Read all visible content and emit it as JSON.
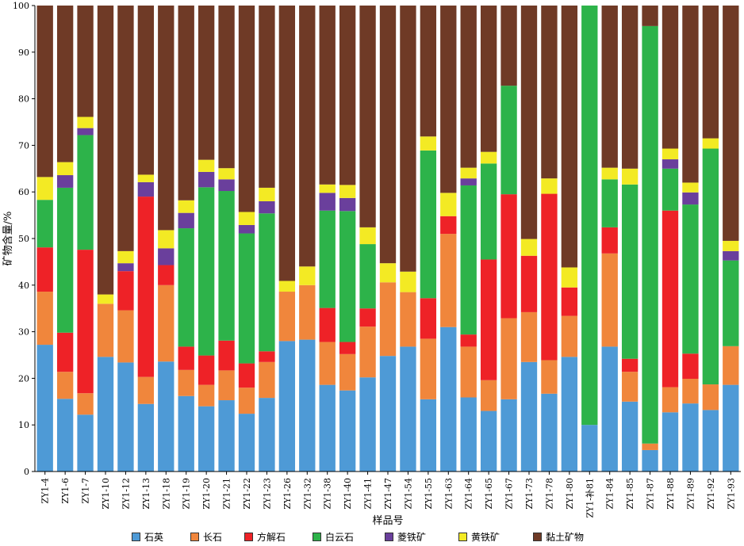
{
  "chart_data": {
    "type": "bar",
    "stacked": true,
    "title": "",
    "xlabel": "样品号",
    "ylabel": "矿物含量/%",
    "ylim": [
      0,
      100
    ],
    "yticks": [
      0,
      10,
      20,
      30,
      40,
      50,
      60,
      70,
      80,
      90,
      100
    ],
    "legend_position": "bottom",
    "categories": [
      "ZY1-4",
      "ZY1-6",
      "ZY1-7",
      "ZY1-10",
      "ZY1-12",
      "ZY1-13",
      "ZY1-18",
      "ZY1-19",
      "ZY1-20",
      "ZY1-21",
      "ZY1-22",
      "ZY1-23",
      "ZY1-26",
      "ZY1-32",
      "ZY1-38",
      "ZY1-40",
      "ZY1-41",
      "ZY1-47",
      "ZY1-54",
      "ZY1-55",
      "ZY1-63",
      "ZY1-64",
      "ZY1-65",
      "ZY1-67",
      "ZY1-73",
      "ZY1-78",
      "ZY1-80",
      "ZY1-补81",
      "ZY1-84",
      "ZY1-85",
      "ZY1-87",
      "ZY1-88",
      "ZY1-89",
      "ZY1-92",
      "ZY1-93"
    ],
    "series": [
      {
        "name": "石英",
        "color": "#4e9ad6",
        "values": [
          27.2,
          15.6,
          12.2,
          24.6,
          23.4,
          14.5,
          23.6,
          16.2,
          14.0,
          15.3,
          12.4,
          15.8,
          28.0,
          28.3,
          18.6,
          17.4,
          20.2,
          24.8,
          26.8,
          15.5,
          31.0,
          15.9,
          13.0,
          15.5,
          23.5,
          16.7,
          24.6,
          10.0,
          26.8,
          15.0,
          4.6,
          12.7,
          14.6,
          13.2,
          18.6
        ]
      },
      {
        "name": "长石",
        "color": "#f0863c",
        "values": [
          11.4,
          5.8,
          4.6,
          11.4,
          11.2,
          5.8,
          16.4,
          5.6,
          4.6,
          6.4,
          5.6,
          7.7,
          10.6,
          11.7,
          9.2,
          7.8,
          10.9,
          15.8,
          11.7,
          13.0,
          20.0,
          10.9,
          6.6,
          17.4,
          10.7,
          7.2,
          8.8,
          0.0,
          20.0,
          6.4,
          1.4,
          5.4,
          5.3,
          5.5,
          8.3
        ]
      },
      {
        "name": "方解石",
        "color": "#ee2227",
        "values": [
          9.5,
          8.4,
          30.8,
          0,
          8.4,
          38.7,
          4.3,
          5.0,
          6.3,
          6.4,
          5.2,
          2.3,
          0,
          0,
          7.3,
          2.6,
          3.9,
          0,
          0,
          8.7,
          3.8,
          2.6,
          25.9,
          26.6,
          12.1,
          35.7,
          6.1,
          0,
          5.6,
          2.8,
          0,
          37.9,
          5.4,
          0,
          0
        ]
      },
      {
        "name": "白云石",
        "color": "#2db34a",
        "values": [
          10.2,
          31.1,
          24.6,
          0,
          0,
          0,
          0,
          25.4,
          36.1,
          32.1,
          27.9,
          29.6,
          0,
          0,
          20.9,
          28.1,
          13.8,
          0,
          0,
          31.7,
          0,
          32.0,
          20.6,
          23.3,
          0,
          0,
          0,
          90.0,
          10.3,
          37.4,
          89.6,
          9.0,
          32.0,
          50.6,
          18.4
        ]
      },
      {
        "name": "菱铁矿",
        "color": "#6a3f9c",
        "values": [
          0,
          2.7,
          1.5,
          0,
          1.7,
          3.1,
          3.6,
          3.3,
          3.3,
          2.5,
          1.8,
          2.6,
          0,
          0,
          3.8,
          2.8,
          0,
          0,
          0,
          0,
          0,
          1.5,
          0,
          0,
          0,
          0,
          0,
          0,
          0,
          0,
          0,
          2.0,
          2.6,
          0,
          2.0
        ]
      },
      {
        "name": "黄铁矿",
        "color": "#f3ea24",
        "values": [
          4.9,
          2.8,
          2.4,
          2.0,
          2.6,
          1.6,
          3.9,
          2.7,
          2.6,
          2.4,
          2.8,
          2.9,
          2.3,
          4.0,
          1.8,
          2.8,
          3.6,
          4.1,
          4.4,
          3.0,
          5.0,
          2.3,
          2.5,
          0,
          3.6,
          3.3,
          4.3,
          0,
          2.5,
          3.4,
          0,
          2.3,
          2.1,
          2.2,
          2.2
        ]
      },
      {
        "name": "黏土矿物",
        "color": "#6f3a26",
        "values": [
          36.8,
          33.6,
          23.9,
          62.0,
          52.7,
          36.3,
          48.2,
          41.8,
          33.1,
          34.9,
          44.3,
          39.1,
          59.1,
          56.0,
          38.4,
          38.5,
          47.6,
          55.3,
          57.1,
          28.1,
          40.2,
          34.8,
          31.4,
          17.2,
          50.1,
          37.1,
          56.2,
          0,
          34.8,
          35.0,
          4.4,
          30.7,
          38.0,
          28.5,
          50.5
        ]
      }
    ]
  }
}
